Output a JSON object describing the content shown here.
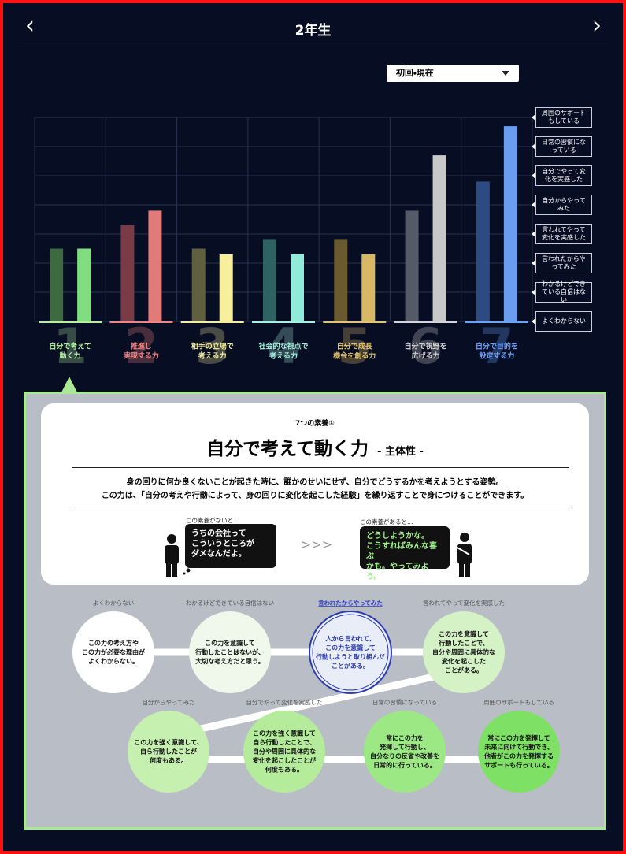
{
  "header": {
    "title": "2年生"
  },
  "selector": {
    "label": "初回・現在"
  },
  "chart_data": {
    "type": "bar",
    "categories": [
      [
        "自分で考えて",
        "動く力"
      ],
      [
        "推進し",
        "実現する力"
      ],
      [
        "相手の立場で",
        "考える力"
      ],
      [
        "社会的な視点で",
        "考える力"
      ],
      [
        "自分で成長",
        "機会を創る力"
      ],
      [
        "自分で視野を",
        "広げる力"
      ],
      [
        "自分で目的を",
        "設定する力"
      ]
    ],
    "category_numbers": [
      "1",
      "2",
      "3",
      "4",
      "5",
      "6",
      "7"
    ],
    "category_colors": [
      "#b4f0a0",
      "#f08484",
      "#f4eea0",
      "#a6f0e0",
      "#e2c474",
      "#d4d4d4",
      "#6aa2ff"
    ],
    "series": [
      {
        "colors": [
          "#3e6a40",
          "#7a3a46",
          "#60603e",
          "#2f6262",
          "#6a5a30",
          "#555a68",
          "#2e4a82"
        ],
        "values": [
          2.5,
          3.3,
          2.5,
          2.8,
          2.8,
          3.8,
          4.8
        ]
      },
      {
        "colors": [
          "#80de80",
          "#e27a7a",
          "#f6f09c",
          "#92ead8",
          "#d8b862",
          "#c8c8c8",
          "#6a9cf0"
        ],
        "values": [
          2.5,
          3.8,
          2.3,
          2.3,
          2.3,
          5.7,
          6.7
        ]
      }
    ],
    "ylim": [
      0,
      7
    ],
    "yticks": [
      {
        "value": 0,
        "label": "よくわからない"
      },
      {
        "value": 1,
        "label": "わかるけどできている自信はない"
      },
      {
        "value": 2,
        "label": "言われたからやってみた"
      },
      {
        "value": 3,
        "label": "言われてやって変化を実感した"
      },
      {
        "value": 4,
        "label": "自分からやってみた"
      },
      {
        "value": 5,
        "label": "自分でやって変化を実感した"
      },
      {
        "value": 6,
        "label": "日常の習慣になっている"
      },
      {
        "value": 7,
        "label": "周囲のサポートもしている"
      }
    ],
    "grid": true
  },
  "detail": {
    "kicker": "7つの素養①",
    "title": "自分で考えて動く力",
    "subtitle": "- 主体性 -",
    "description": [
      "身の回りに何か良くないことが起きた時に、誰かのせいにせず、自分でどうするかを考えようとする姿勢。",
      "この力は、「自分の考えや行動によって、身の回りに変化を起こした経験」を繰り返すことで身につけることができます。"
    ],
    "before": {
      "caption": "この素養がないと…",
      "lines": [
        "うちの会社って",
        "こういうところが",
        "ダメなんだよ。"
      ]
    },
    "after": {
      "caption": "この素養があると…",
      "lines": [
        "どうしようかな。",
        "こうすればみんな喜ぶ",
        "かも。やってみよう。"
      ]
    },
    "selected_level": 2,
    "levels": [
      {
        "label": "よくわからない",
        "lines": [
          "この力の考え方や",
          "この力が必要な理由が",
          "よくわからない。"
        ]
      },
      {
        "label": "わかるけどできている自信はない",
        "lines": [
          "この力を意識して",
          "行動したことはないが、",
          "大切な考え方だと思う。"
        ]
      },
      {
        "label": "言われたからやってみた",
        "lines": [
          "人から言われて、",
          "この力を意識して",
          "行動しようと取り組んだ",
          "ことがある。"
        ]
      },
      {
        "label": "言われてやって変化を実感した",
        "lines": [
          "この力を意識して",
          "行動したことで、",
          "自分や周囲に具体的な",
          "変化を起こした",
          "ことがある。"
        ]
      },
      {
        "label": "自分からやってみた",
        "lines": [
          "この力を強く意識して、",
          "自ら行動したことが",
          "何度もある。"
        ]
      },
      {
        "label": "自分でやって変化を実感した",
        "lines": [
          "この力を強く意識して",
          "自ら行動したことで、",
          "自分や周囲に具体的な",
          "変化を起こしたことが",
          "何度もある。"
        ]
      },
      {
        "label": "日常の習慣になっている",
        "lines": [
          "常にこの力を",
          "発揮して行動し、",
          "自分なりの反省や改善を",
          "日常的に行っている。"
        ]
      },
      {
        "label": "周囲のサポートもしている",
        "lines": [
          "常にこの力を発揮して",
          "未来に向けて行動でき、",
          "他者がこの力を発揮する",
          "サポートも行っている。"
        ]
      }
    ]
  }
}
